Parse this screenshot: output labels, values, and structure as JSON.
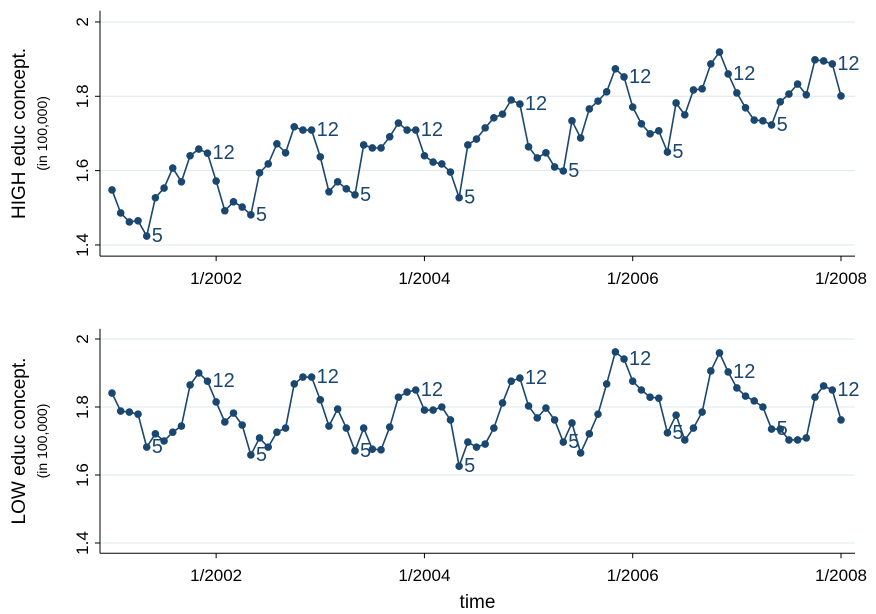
{
  "chart_data": [
    {
      "type": "line",
      "ylabel": "HIGH educ concept.",
      "ylabel_note": "(in 100,000)",
      "categories": [
        null,
        null,
        null,
        null,
        null,
        null,
        null,
        null,
        null,
        null,
        null,
        null,
        "1/2002",
        null,
        null,
        null,
        null,
        null,
        null,
        null,
        null,
        null,
        null,
        null,
        null,
        null,
        null,
        null,
        null,
        null,
        null,
        null,
        null,
        null,
        null,
        null,
        "1/2004",
        null,
        null,
        null,
        null,
        null,
        null,
        null,
        null,
        null,
        null,
        null,
        null,
        null,
        null,
        null,
        null,
        null,
        null,
        null,
        null,
        null,
        null,
        null,
        "1/2006",
        null,
        null,
        null,
        null,
        null,
        null,
        null,
        null,
        null,
        null,
        null,
        null,
        null,
        null,
        null,
        null,
        null,
        null,
        null,
        null,
        null,
        null,
        null,
        "1/2008"
      ],
      "ylim": [
        1.37,
        2.03
      ],
      "yticks": [
        1.4,
        1.6,
        1.8,
        2
      ],
      "grid": true,
      "series": [
        {
          "color": "#1a476f",
          "values": [
            1.548,
            1.486,
            1.462,
            1.465,
            1.424,
            1.527,
            1.553,
            1.607,
            1.57,
            1.64,
            1.658,
            1.647,
            1.572,
            1.492,
            1.516,
            1.502,
            1.481,
            1.594,
            1.618,
            1.672,
            1.648,
            1.718,
            1.709,
            1.709,
            1.637,
            1.543,
            1.57,
            1.551,
            1.535,
            1.669,
            1.661,
            1.661,
            1.691,
            1.728,
            1.709,
            1.709,
            1.64,
            1.623,
            1.618,
            1.596,
            1.527,
            1.669,
            1.685,
            1.715,
            1.742,
            1.752,
            1.79,
            1.779,
            1.664,
            1.634,
            1.648,
            1.61,
            1.599,
            1.734,
            1.688,
            1.766,
            1.787,
            1.812,
            1.874,
            1.852,
            1.771,
            1.726,
            1.699,
            1.707,
            1.65,
            1.782,
            1.75,
            1.817,
            1.82,
            1.887,
            1.919,
            1.86,
            1.809,
            1.769,
            1.736,
            1.734,
            1.723,
            1.785,
            1.806,
            1.833,
            1.804,
            1.898,
            1.895,
            1.887,
            1.801
          ],
          "marker_labels": [
            null,
            null,
            null,
            null,
            "5",
            null,
            null,
            null,
            null,
            null,
            null,
            "12",
            null,
            null,
            null,
            null,
            "5",
            null,
            null,
            null,
            null,
            null,
            null,
            "12",
            null,
            null,
            null,
            null,
            "5",
            null,
            null,
            null,
            null,
            null,
            null,
            "12",
            null,
            null,
            null,
            null,
            "5",
            null,
            null,
            null,
            null,
            null,
            null,
            "12",
            null,
            null,
            null,
            null,
            "5",
            null,
            null,
            null,
            null,
            null,
            null,
            "12",
            null,
            null,
            null,
            null,
            "5",
            null,
            null,
            null,
            null,
            null,
            null,
            "12",
            null,
            null,
            null,
            null,
            "5",
            null,
            null,
            null,
            null,
            null,
            null,
            "12",
            null
          ]
        }
      ]
    },
    {
      "type": "line",
      "ylabel": "LOW educ concept.",
      "ylabel_note": "(in 100,000)",
      "xlabel": "time",
      "categories": [
        null,
        null,
        null,
        null,
        null,
        null,
        null,
        null,
        null,
        null,
        null,
        null,
        "1/2002",
        null,
        null,
        null,
        null,
        null,
        null,
        null,
        null,
        null,
        null,
        null,
        null,
        null,
        null,
        null,
        null,
        null,
        null,
        null,
        null,
        null,
        null,
        null,
        "1/2004",
        null,
        null,
        null,
        null,
        null,
        null,
        null,
        null,
        null,
        null,
        null,
        null,
        null,
        null,
        null,
        null,
        null,
        null,
        null,
        null,
        null,
        null,
        null,
        "1/2006",
        null,
        null,
        null,
        null,
        null,
        null,
        null,
        null,
        null,
        null,
        null,
        null,
        null,
        null,
        null,
        null,
        null,
        null,
        null,
        null,
        null,
        null,
        null,
        "1/2008"
      ],
      "ylim": [
        1.37,
        2.03
      ],
      "yticks": [
        1.4,
        1.6,
        1.8,
        2
      ],
      "grid": true,
      "series": [
        {
          "color": "#1a476f",
          "values": [
            1.841,
            1.788,
            1.785,
            1.779,
            1.682,
            1.721,
            1.7,
            1.726,
            1.744,
            1.865,
            1.9,
            1.876,
            1.815,
            1.756,
            1.782,
            1.747,
            1.659,
            1.709,
            1.682,
            1.726,
            1.738,
            1.868,
            1.888,
            1.888,
            1.821,
            1.744,
            1.794,
            1.738,
            1.671,
            1.738,
            1.676,
            1.674,
            1.741,
            1.829,
            1.844,
            1.85,
            1.791,
            1.791,
            1.8,
            1.762,
            1.626,
            1.697,
            1.682,
            1.691,
            1.738,
            1.812,
            1.876,
            1.885,
            1.803,
            1.768,
            1.797,
            1.762,
            1.697,
            1.753,
            1.665,
            1.721,
            1.779,
            1.868,
            1.962,
            1.941,
            1.876,
            1.85,
            1.829,
            1.826,
            1.724,
            1.776,
            1.703,
            1.738,
            1.785,
            1.906,
            1.959,
            1.903,
            1.856,
            1.832,
            1.818,
            1.8,
            1.735,
            1.735,
            1.703,
            1.703,
            1.709,
            1.829,
            1.862,
            1.85,
            1.762
          ],
          "marker_labels": [
            null,
            null,
            null,
            null,
            "5",
            null,
            null,
            null,
            null,
            null,
            null,
            "12",
            null,
            null,
            null,
            null,
            "5",
            null,
            null,
            null,
            null,
            null,
            null,
            "12",
            null,
            null,
            null,
            null,
            "5",
            null,
            null,
            null,
            null,
            null,
            null,
            "12",
            null,
            null,
            null,
            null,
            "5",
            null,
            null,
            null,
            null,
            null,
            null,
            "12",
            null,
            null,
            null,
            null,
            "5",
            null,
            null,
            null,
            null,
            null,
            null,
            "12",
            null,
            null,
            null,
            null,
            "5",
            null,
            null,
            null,
            null,
            null,
            null,
            "12",
            null,
            null,
            null,
            null,
            "5",
            null,
            null,
            null,
            null,
            null,
            null,
            "12",
            null
          ]
        }
      ]
    }
  ]
}
